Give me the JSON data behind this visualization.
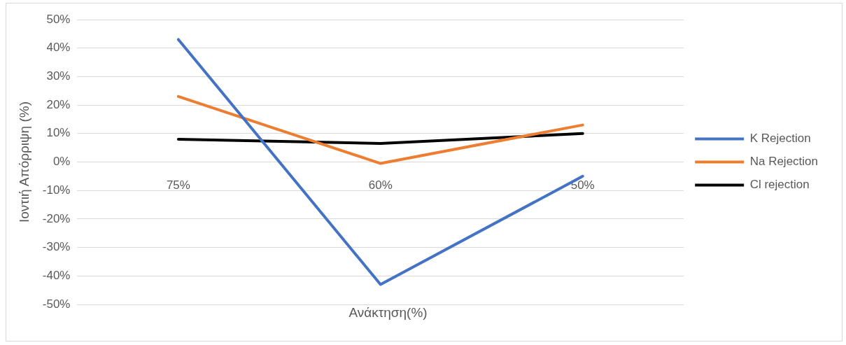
{
  "chart_data": {
    "type": "line",
    "xlabel": "Ανάκτηση(%)",
    "ylabel": "Ιοντιή Απόρριψη (%)",
    "categories": [
      "75%",
      "60%",
      "50%"
    ],
    "series": [
      {
        "name": "K Rejection",
        "color": "#4472c4",
        "values": [
          43,
          -43,
          -5
        ]
      },
      {
        "name": "Na Rejection",
        "color": "#ed7d31",
        "values": [
          23,
          -0.5,
          13
        ]
      },
      {
        "name": "Cl rejection",
        "color": "#000000",
        "values": [
          8,
          6.5,
          10
        ]
      }
    ],
    "ylim": [
      -50,
      50
    ],
    "yticks": [
      {
        "value": -50,
        "label": "-50%"
      },
      {
        "value": -40,
        "label": "-40%"
      },
      {
        "value": -30,
        "label": "-30%"
      },
      {
        "value": -20,
        "label": "-20%"
      },
      {
        "value": -10,
        "label": "-10%"
      },
      {
        "value": 0,
        "label": "0%"
      },
      {
        "value": 10,
        "label": "10%"
      },
      {
        "value": 20,
        "label": "20%"
      },
      {
        "value": 30,
        "label": "30%"
      },
      {
        "value": 40,
        "label": "40%"
      },
      {
        "value": 50,
        "label": "50%"
      }
    ],
    "grid": "y",
    "legend": "right",
    "marker": "none",
    "line_style": "solid"
  }
}
